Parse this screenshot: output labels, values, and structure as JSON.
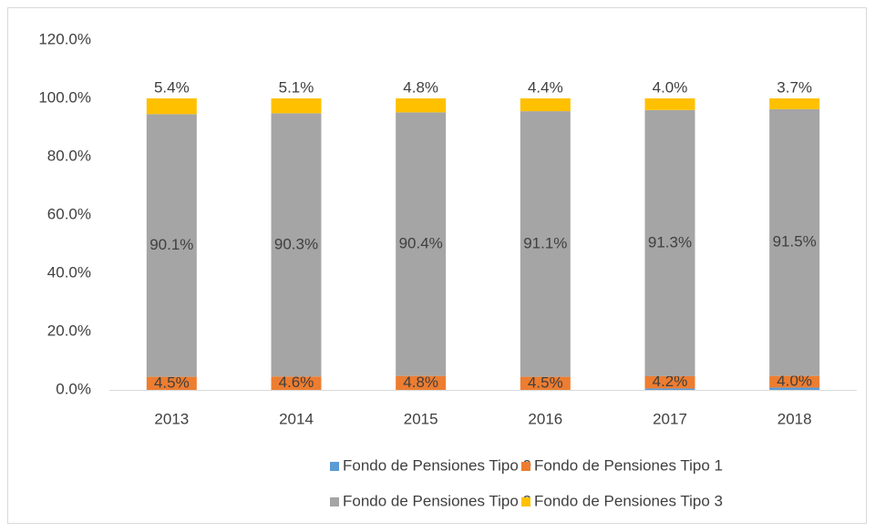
{
  "chart_data": {
    "type": "stacked_bar",
    "categories": [
      "2013",
      "2014",
      "2015",
      "2016",
      "2017",
      "2018"
    ],
    "series": [
      {
        "name": "Fondo de Pensiones Tipo 0",
        "color": "#5b9bd5",
        "values": [
          0,
          0,
          0,
          0,
          0.5,
          0.8
        ]
      },
      {
        "name": "Fondo de Pensiones Tipo 1",
        "color": "#ed7d31",
        "values": [
          4.5,
          4.6,
          4.8,
          4.5,
          4.2,
          4.0
        ],
        "value_labels": [
          "4.5%",
          "4.6%",
          "4.8%",
          "4.5%",
          "4.2%",
          "4.0%"
        ]
      },
      {
        "name": "Fondo de Pensiones Tipo 2",
        "color": "#a5a5a5",
        "values": [
          90.1,
          90.3,
          90.4,
          91.1,
          91.3,
          91.5
        ],
        "value_labels": [
          "90.1%",
          "90.3%",
          "90.4%",
          "91.1%",
          "91.3%",
          "91.5%"
        ]
      },
      {
        "name": "Fondo de Pensiones Tipo 3",
        "color": "#ffc000",
        "values": [
          5.4,
          5.1,
          4.8,
          4.4,
          4.0,
          3.7
        ],
        "value_labels": [
          "5.4%",
          "5.1%",
          "4.8%",
          "4.4%",
          "4.0%",
          "3.7%"
        ]
      }
    ],
    "ylim": [
      0,
      120
    ],
    "yticks": [
      {
        "value": 0,
        "label": "0.0%"
      },
      {
        "value": 20,
        "label": "20.0%"
      },
      {
        "value": 40,
        "label": "40.0%"
      },
      {
        "value": 60,
        "label": "60.0%"
      },
      {
        "value": 80,
        "label": "80.0%"
      },
      {
        "value": 100,
        "label": "100.0%"
      },
      {
        "value": 120,
        "label": "120.0%"
      }
    ],
    "grid": false,
    "legend": "bottom"
  }
}
